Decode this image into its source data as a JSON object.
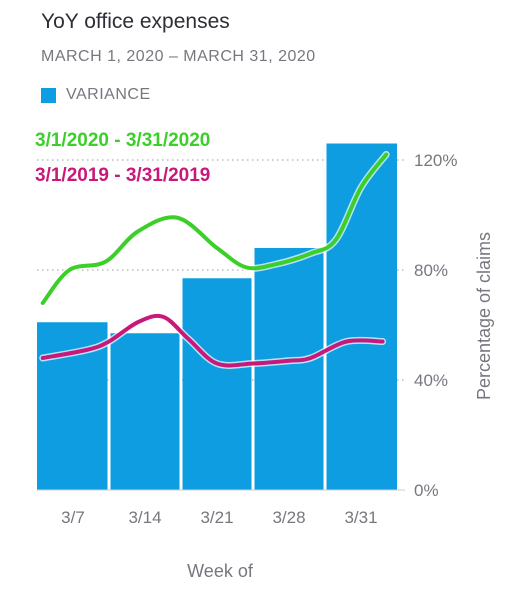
{
  "chart_data": {
    "type": "bar",
    "title": "YoY office expenses",
    "subtitle": "MARCH 1, 2020 – MARCH 31, 2020",
    "xlabel": "Week of",
    "ylabel": "Percentage of claims",
    "categories": [
      "3/7",
      "3/14",
      "3/21",
      "3/28",
      "3/31"
    ],
    "ylim": [
      0,
      120
    ],
    "yticks": [
      0,
      40,
      80,
      120
    ],
    "ytick_labels": [
      "0%",
      "40%",
      "80%",
      "120%"
    ],
    "grid": true,
    "legend_position": "top-left",
    "series": [
      {
        "name": "VARIANCE",
        "kind": "bar",
        "color": "#0d9de0",
        "values": [
          61,
          57,
          77,
          88,
          126
        ]
      }
    ],
    "lines": [
      {
        "name": "3/1/2020 - 3/31/2020",
        "color": "#3ccf2a",
        "x": [
          -0.42,
          -0.05,
          0.45,
          0.9,
          1.45,
          2.0,
          2.4,
          2.8,
          3.3,
          3.65,
          4.0,
          4.35
        ],
        "values": [
          68,
          80,
          83,
          94,
          99,
          88,
          81,
          82,
          86,
          91,
          110,
          122
        ]
      },
      {
        "name": "3/1/2019 - 3/31/2019",
        "color": "#c8197b",
        "x": [
          -0.42,
          0.2,
          0.5,
          0.9,
          1.25,
          1.6,
          2.0,
          2.5,
          3.0,
          3.3,
          3.8,
          4.3
        ],
        "values": [
          48,
          51,
          54,
          61,
          63,
          55,
          46,
          46,
          47,
          48,
          54,
          54
        ]
      }
    ]
  }
}
